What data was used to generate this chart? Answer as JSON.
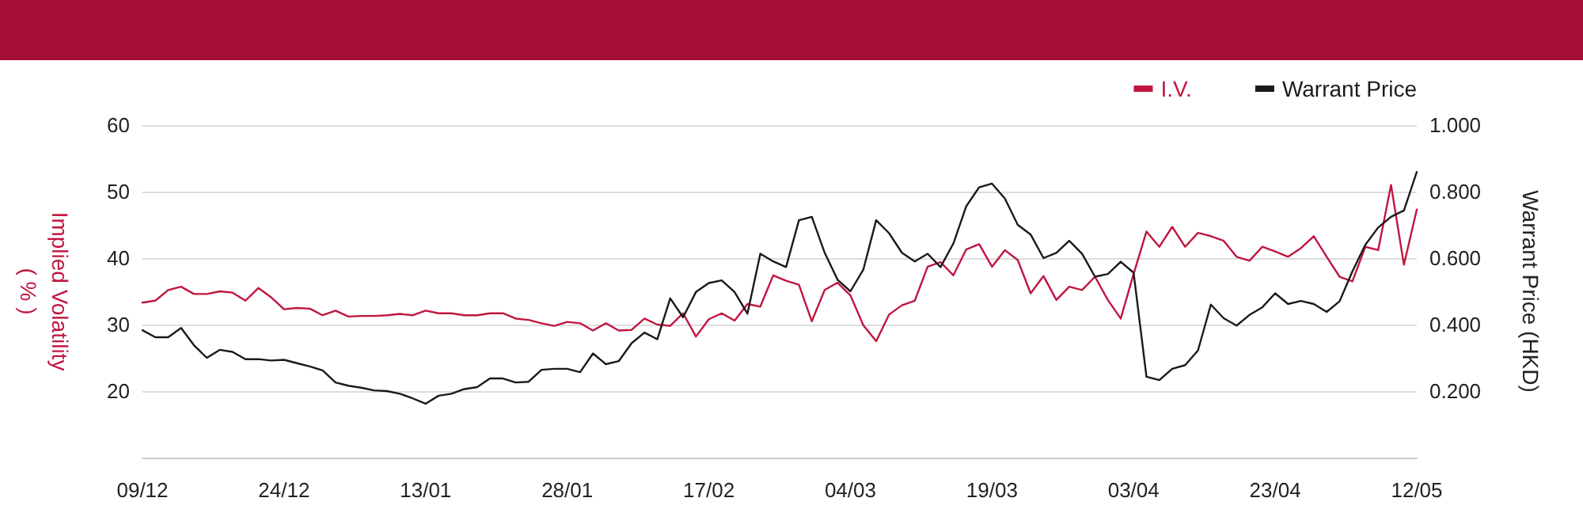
{
  "chart_data": {
    "type": "line",
    "categories": [
      "09/12",
      null,
      null,
      null,
      null,
      null,
      null,
      null,
      null,
      null,
      null,
      "24/12",
      null,
      null,
      null,
      null,
      null,
      null,
      null,
      null,
      null,
      null,
      "13/01",
      null,
      null,
      null,
      null,
      null,
      null,
      null,
      null,
      null,
      null,
      "28/01",
      null,
      null,
      null,
      null,
      null,
      null,
      null,
      null,
      null,
      null,
      "17/02",
      null,
      null,
      null,
      null,
      null,
      null,
      null,
      null,
      null,
      null,
      "04/03",
      null,
      null,
      null,
      null,
      null,
      null,
      null,
      null,
      null,
      null,
      "19/03",
      null,
      null,
      null,
      null,
      null,
      null,
      null,
      null,
      null,
      null,
      "03/04",
      null,
      null,
      null,
      null,
      null,
      null,
      null,
      null,
      null,
      null,
      "23/04",
      null,
      null,
      null,
      null,
      null,
      null,
      null,
      null,
      null,
      null,
      "12/05"
    ],
    "series": [
      {
        "name": "I.V.",
        "color": "#c0163f",
        "values": [
          33.3,
          33.6,
          35.2,
          35.7,
          34.6,
          34.6,
          35.0,
          34.8,
          33.6,
          35.5,
          34.1,
          32.3,
          32.5,
          32.4,
          31.4,
          32.1,
          31.2,
          31.3,
          31.3,
          31.4,
          31.6,
          31.4,
          32.1,
          31.7,
          31.7,
          31.4,
          31.4,
          31.7,
          31.7,
          30.9,
          30.7,
          30.2,
          29.8,
          30.4,
          30.2,
          29.1,
          30.2,
          29.1,
          29.2,
          30.9,
          30.0,
          29.8,
          31.7,
          28.2,
          30.8,
          31.7,
          30.6,
          33.1,
          32.7,
          37.4,
          36.6,
          36.0,
          30.5,
          35.2,
          36.3,
          34.4,
          29.9,
          27.5,
          31.5,
          32.9,
          33.6,
          38.7,
          39.4,
          37.4,
          41.3,
          42.1,
          38.7,
          41.2,
          39.7,
          34.7,
          37.3,
          33.7,
          35.7,
          35.2,
          37.2,
          33.7,
          30.9,
          37.6,
          44.0,
          41.7,
          44.7,
          41.7,
          43.8,
          43.3,
          42.6,
          40.2,
          39.6,
          41.7,
          41.0,
          40.2,
          41.5,
          43.3,
          40.2,
          37.2,
          36.5,
          41.7,
          41.2,
          51.0,
          39.0,
          47.3
        ]
      },
      {
        "name": "Warrant Price",
        "color": "#1a1a1a",
        "axis": "y2",
        "values": [
          0.383,
          0.362,
          0.362,
          0.39,
          0.338,
          0.3,
          0.324,
          0.318,
          0.296,
          0.296,
          0.292,
          0.294,
          0.284,
          0.274,
          0.262,
          0.226,
          0.216,
          0.21,
          0.202,
          0.2,
          0.192,
          0.178,
          0.162,
          0.186,
          0.192,
          0.206,
          0.212,
          0.238,
          0.238,
          0.226,
          0.228,
          0.264,
          0.267,
          0.267,
          0.257,
          0.313,
          0.281,
          0.29,
          0.344,
          0.376,
          0.356,
          0.479,
          0.422,
          0.498,
          0.525,
          0.533,
          0.498,
          0.433,
          0.613,
          0.59,
          0.573,
          0.714,
          0.724,
          0.616,
          0.535,
          0.5,
          0.565,
          0.714,
          0.675,
          0.616,
          0.59,
          0.613,
          0.573,
          0.644,
          0.756,
          0.813,
          0.824,
          0.779,
          0.7,
          0.671,
          0.6,
          0.616,
          0.652,
          0.613,
          0.544,
          0.552,
          0.589,
          0.556,
          0.243,
          0.233,
          0.267,
          0.278,
          0.322,
          0.46,
          0.419,
          0.397,
          0.429,
          0.452,
          0.494,
          0.462,
          0.471,
          0.462,
          0.438,
          0.47,
          0.56,
          0.64,
          0.692,
          0.724,
          0.743,
          0.859
        ]
      }
    ],
    "ylabel": "Implied Volatility\n( % )",
    "y2label": "Warrant Price (HKD)",
    "ylim": [
      10,
      60
    ],
    "yticks": [
      20,
      30,
      40,
      50,
      60
    ],
    "y2lim": [
      0,
      1
    ],
    "y2ticks": [
      {
        "value": 0.2,
        "label": "0.200"
      },
      {
        "value": 0.4,
        "label": "0.400"
      },
      {
        "value": 0.6,
        "label": "0.600"
      },
      {
        "value": 0.8,
        "label": "0.800"
      },
      {
        "value": 1,
        "label": "1.000"
      }
    ],
    "grid": "y",
    "legend": "top right",
    "marker": "none",
    "line_style": "solid"
  }
}
